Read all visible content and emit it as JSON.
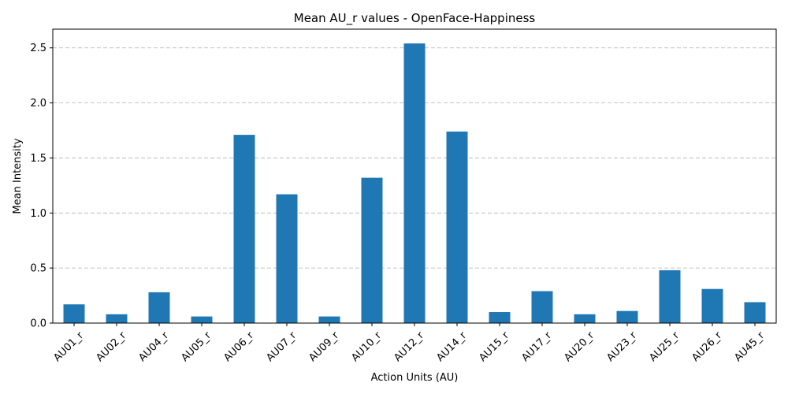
{
  "chart_data": {
    "type": "bar",
    "title": "Mean AU_r values - OpenFace-Happiness",
    "xlabel": "Action Units (AU)",
    "ylabel": "Mean Intensity",
    "categories": [
      "AU01_r",
      "AU02_r",
      "AU04_r",
      "AU05_r",
      "AU06_r",
      "AU07_r",
      "AU09_r",
      "AU10_r",
      "AU12_r",
      "AU14_r",
      "AU15_r",
      "AU17_r",
      "AU20_r",
      "AU23_r",
      "AU25_r",
      "AU26_r",
      "AU45_r"
    ],
    "values": [
      0.17,
      0.08,
      0.28,
      0.06,
      1.71,
      1.17,
      0.06,
      1.32,
      2.54,
      1.74,
      0.1,
      0.29,
      0.08,
      0.11,
      0.48,
      0.31,
      0.19
    ],
    "ylim": [
      0,
      2.67
    ],
    "yticks": [
      0.0,
      0.5,
      1.0,
      1.5,
      2.0,
      2.5
    ],
    "ytick_labels": [
      "0.0",
      "0.5",
      "1.0",
      "1.5",
      "2.0",
      "2.5"
    ],
    "grid": "y-dashed",
    "bar_color": "#1f77b4"
  }
}
